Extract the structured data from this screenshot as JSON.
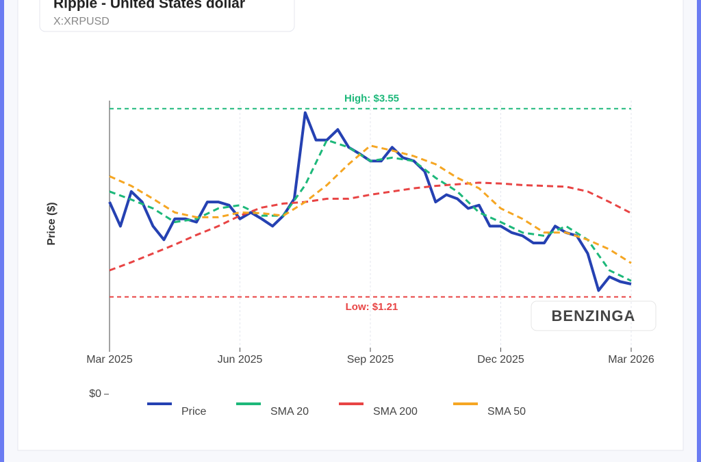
{
  "header": {
    "title": "Ripple - United States dollar",
    "symbol": "X:XRPUSD"
  },
  "chart_data": {
    "type": "line",
    "y_label": "Price ($)",
    "xlim": [
      0,
      12
    ],
    "xticks": [
      {
        "value": 0,
        "label": "Mar 2025"
      },
      {
        "value": 3,
        "label": "Jun 2025"
      },
      {
        "value": 6,
        "label": "Sep 2025"
      },
      {
        "value": 9,
        "label": "Dec 2025"
      },
      {
        "value": 12,
        "label": "Mar 2026"
      }
    ],
    "ylim": [
      0,
      3.65
    ],
    "yticks": [
      {
        "value": 0,
        "label": "$0"
      }
    ],
    "grid": true,
    "series": [
      {
        "name": "Price",
        "color": "#2541b2",
        "dash": false,
        "x": [
          0,
          0.25,
          0.5,
          0.75,
          1,
          1.25,
          1.5,
          1.75,
          2,
          2.25,
          2.5,
          2.75,
          3,
          3.25,
          3.5,
          3.75,
          4,
          4.25,
          4.5,
          4.75,
          5,
          5.25,
          5.5,
          5.75,
          6,
          6.25,
          6.5,
          6.75,
          7,
          7.25,
          7.5,
          7.75,
          8,
          8.25,
          8.5,
          8.75,
          9,
          9.25,
          9.5,
          9.75,
          10,
          10.25,
          10.5,
          10.75,
          11,
          11.25,
          11.5,
          11.75,
          12
        ],
        "values": [
          2.39,
          2.09,
          2.52,
          2.39,
          2.09,
          1.92,
          2.18,
          2.18,
          2.14,
          2.39,
          2.39,
          2.35,
          2.18,
          2.26,
          2.18,
          2.09,
          2.22,
          2.43,
          3.5,
          3.16,
          3.16,
          3.29,
          3.07,
          2.99,
          2.9,
          2.9,
          3.07,
          2.94,
          2.9,
          2.77,
          2.39,
          2.48,
          2.43,
          2.31,
          2.35,
          2.09,
          2.09,
          2.01,
          1.97,
          1.88,
          1.88,
          2.09,
          2.01,
          1.97,
          1.75,
          1.29,
          1.46,
          1.4,
          1.37
        ]
      },
      {
        "name": "SMA 20",
        "color": "#1db87a",
        "dash": true,
        "x": [
          0,
          0.5,
          1,
          1.5,
          2,
          2.5,
          3,
          3.5,
          4,
          4.5,
          5,
          5.5,
          6,
          6.5,
          7,
          7.5,
          8,
          8.5,
          9,
          9.5,
          10,
          10.5,
          11,
          11.5,
          12
        ],
        "values": [
          2.52,
          2.42,
          2.31,
          2.14,
          2.18,
          2.31,
          2.35,
          2.22,
          2.22,
          2.6,
          3.16,
          3.07,
          2.9,
          2.94,
          2.9,
          2.69,
          2.52,
          2.26,
          2.14,
          2.01,
          1.97,
          2.09,
          1.92,
          1.54,
          1.41
        ]
      },
      {
        "name": "SMA 200",
        "color": "#e84444",
        "dash": true,
        "x": [
          0,
          0.5,
          1,
          1.5,
          2,
          2.5,
          3,
          3.5,
          4,
          4.5,
          5,
          5.5,
          6,
          6.5,
          7,
          7.5,
          8,
          8.5,
          9,
          9.5,
          10,
          10.5,
          11,
          11.5,
          12
        ],
        "values": [
          1.54,
          1.64,
          1.75,
          1.86,
          1.98,
          2.09,
          2.22,
          2.32,
          2.37,
          2.39,
          2.43,
          2.43,
          2.48,
          2.52,
          2.56,
          2.59,
          2.61,
          2.63,
          2.62,
          2.6,
          2.59,
          2.58,
          2.52,
          2.39,
          2.25
        ]
      },
      {
        "name": "SMA 50",
        "color": "#f5a623",
        "dash": true,
        "x": [
          0,
          0.5,
          1,
          1.5,
          2,
          2.5,
          3,
          3.5,
          4,
          4.5,
          5,
          5.5,
          6,
          6.5,
          7,
          7.5,
          8,
          8.5,
          9,
          9.5,
          10,
          10.5,
          11,
          11.5,
          12
        ],
        "values": [
          2.71,
          2.59,
          2.43,
          2.26,
          2.2,
          2.2,
          2.26,
          2.25,
          2.22,
          2.39,
          2.6,
          2.86,
          3.09,
          3.03,
          2.96,
          2.86,
          2.69,
          2.56,
          2.31,
          2.18,
          2.01,
          2.01,
          1.92,
          1.8,
          1.63
        ]
      }
    ],
    "high": {
      "value": 3.55,
      "label": "High: $3.55",
      "color": "#1db87a"
    },
    "low": {
      "value": 1.21,
      "label": "Low: $1.21",
      "color": "#e84444"
    },
    "watermark": "BENZINGA"
  }
}
